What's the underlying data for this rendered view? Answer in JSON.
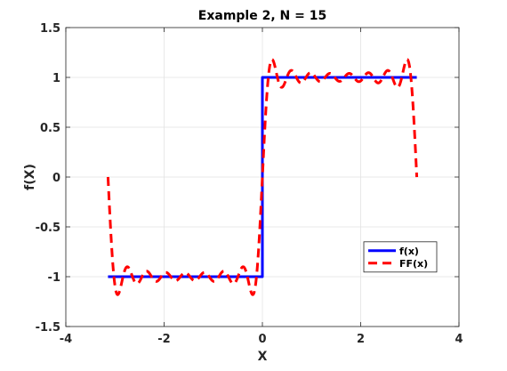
{
  "chart_data": {
    "type": "line",
    "title": "Example 2, N = 15",
    "xlabel": "X",
    "ylabel": "f(X)",
    "xlim": [
      -4,
      4
    ],
    "ylim": [
      -1.5,
      1.5
    ],
    "xticks": [
      -4,
      -2,
      0,
      2,
      4
    ],
    "xtick_labels": [
      "-4",
      "-2",
      "0",
      "2",
      "4"
    ],
    "yticks": [
      -1.5,
      -1,
      -0.5,
      0,
      0.5,
      1,
      1.5
    ],
    "ytick_labels": [
      "-1.5",
      "-1",
      "-0.5",
      "0",
      "0.5",
      "1",
      "1.5"
    ],
    "grid": true,
    "legend_position": "bottom-right",
    "series": [
      {
        "name": "f(x)",
        "color": "#0000ff",
        "style": "solid",
        "x": [
          -3.1416,
          0,
          0,
          3.1416
        ],
        "y": [
          -1,
          -1,
          1,
          1
        ]
      },
      {
        "name": "FF(x)",
        "color": "#ff0000",
        "style": "dashed",
        "fourier": {
          "form": "square-wave",
          "N": 15,
          "x_range": [
            -3.1416,
            3.1416
          ]
        }
      }
    ]
  }
}
